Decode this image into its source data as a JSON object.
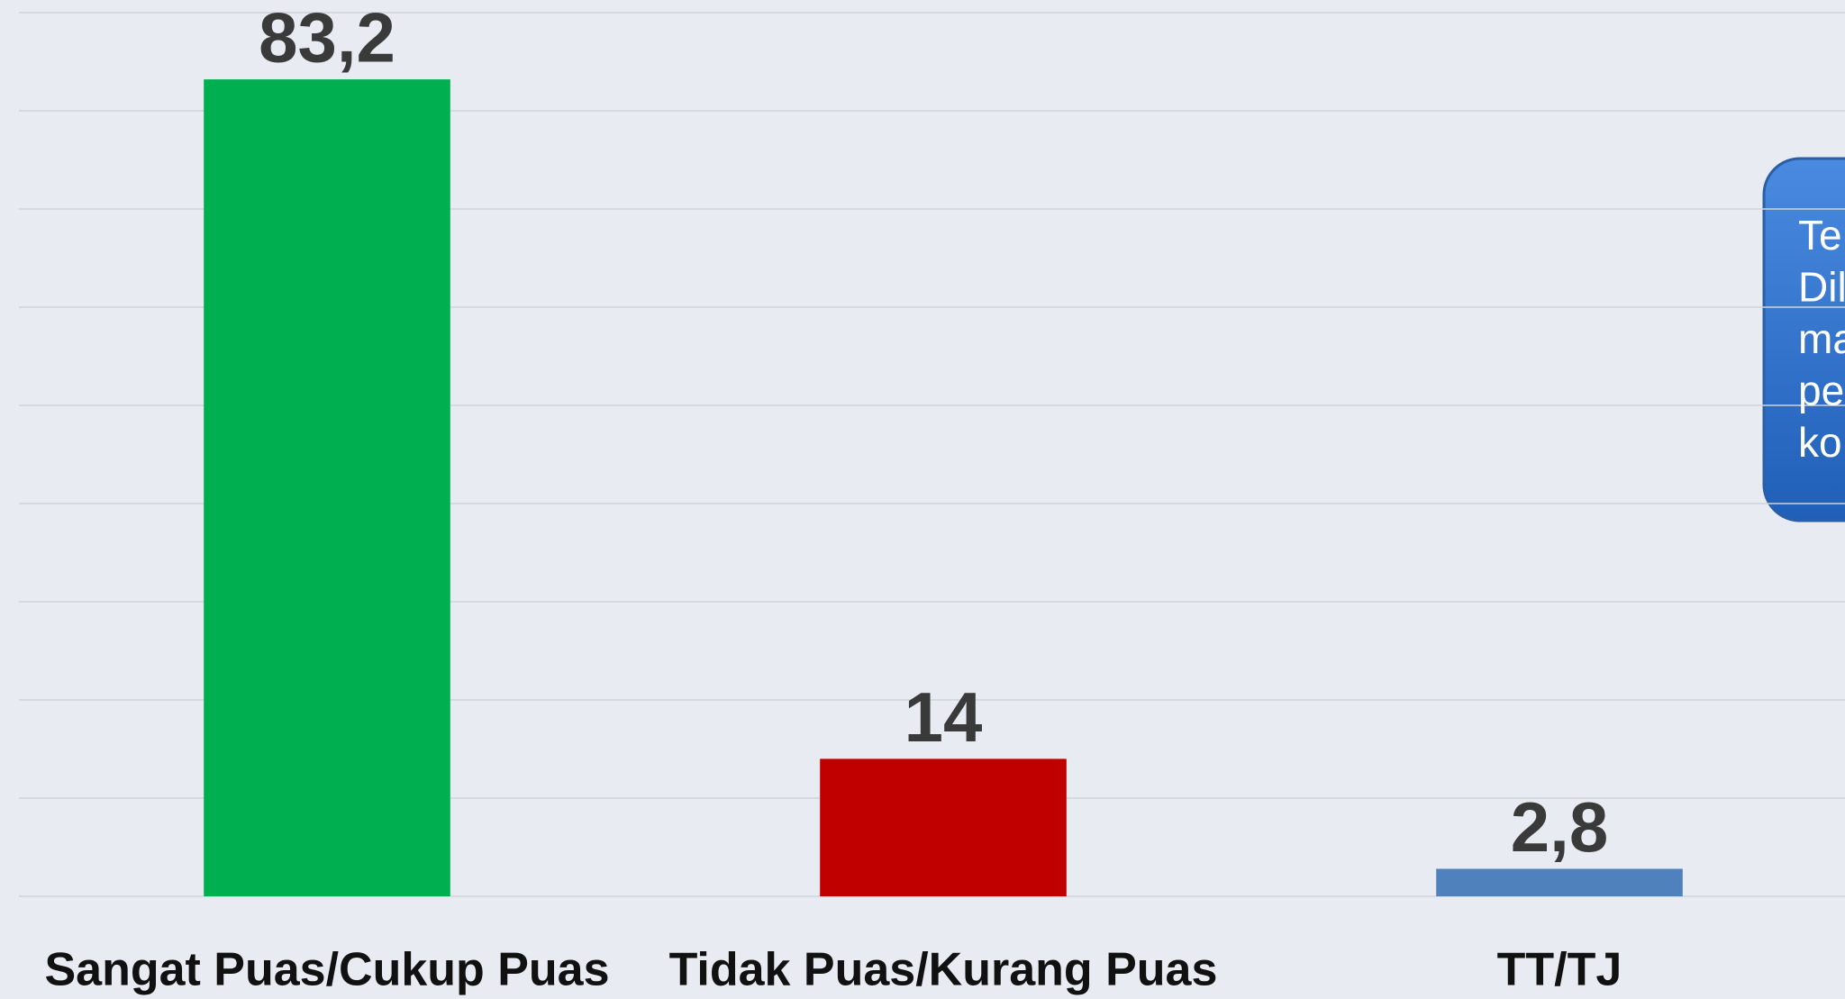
{
  "chart_data": {
    "type": "bar",
    "categories": [
      "Sangat Puas/Cukup Puas",
      "Tidak Puas/Kurang Puas",
      "TT/TJ"
    ],
    "values": [
      83.2,
      14,
      2.8
    ],
    "value_labels": [
      "83,2",
      "14",
      "2,8"
    ],
    "colors": [
      "#00b050",
      "#c00000",
      "#4f81bd"
    ],
    "ylim": [
      0,
      90
    ],
    "yticks": [
      0,
      10,
      20,
      30,
      40,
      50,
      60,
      70,
      80,
      90
    ],
    "grid": true,
    "annotation": [
      "Te",
      "Dil",
      "ma",
      "pe",
      "ko"
    ]
  }
}
